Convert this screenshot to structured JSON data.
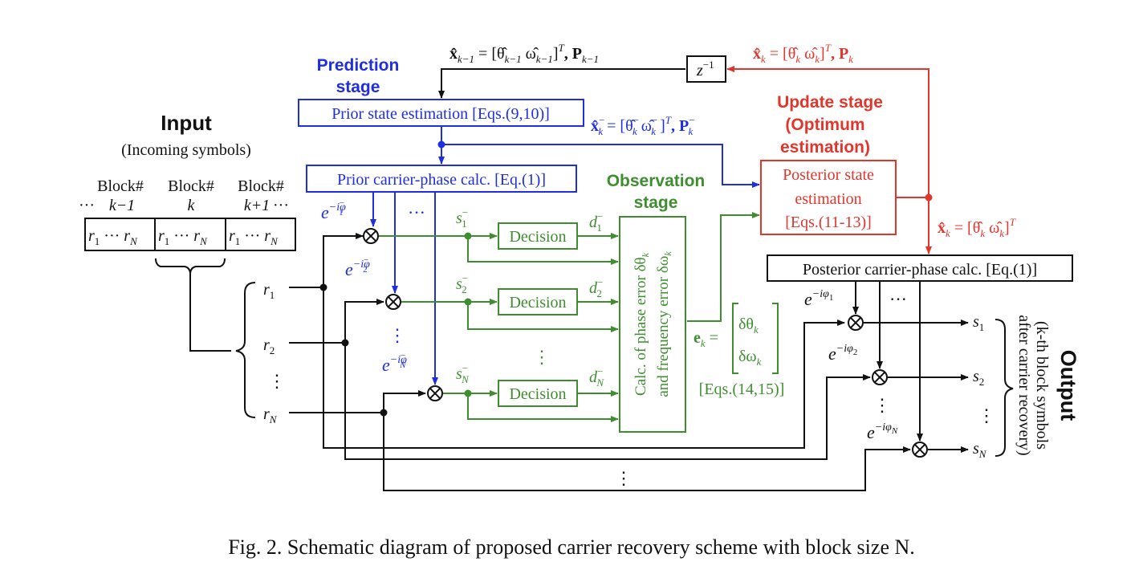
{
  "colors": {
    "black": "#111111",
    "blue": "#1f2ee0",
    "green": "#3e8e2f",
    "red": "#e2362c"
  },
  "input": {
    "title": "Input",
    "subtitle": "(Incoming symbols)",
    "block_prev": "Block#",
    "block_prev_index": "k−1",
    "block_cur": "Block#",
    "block_cur_index": "k",
    "block_next": "Block#",
    "block_next_index": "k+1",
    "ellipsis": "···",
    "symbols": [
      "r",
      "r",
      "r"
    ],
    "symbols_sub": [
      "1",
      "N",
      "1",
      "N",
      "1",
      "N"
    ],
    "r1": "r",
    "r1_sub": "1",
    "r2": "r",
    "r2_sub": "2",
    "rN": "r",
    "rN_sub": "N",
    "vdots": "⋮"
  },
  "prediction": {
    "label_line1": "Prediction",
    "label_line2": "stage",
    "prior_state_box": "Prior state estimation [Eqs.(9,10)]",
    "prior_phase_box": "Prior carrier-phase calc. [Eq.(1)]",
    "feedback_label": "x̂",
    "feedback_sub": "k−1",
    "feedback_eq": " = [θ̂",
    "feedback_theta_sub": "k−1",
    "feedback_omega": "  ω̂",
    "feedback_omega_sub": "k−1",
    "feedback_close": "]",
    "feedback_T": "T",
    "feedback_P": ",  P",
    "feedback_P_sub": "k−1",
    "prior_out": "x̂",
    "prior_out_sub": "k",
    "prior_out_sup": "−",
    "prior_eq": " = [θ̂",
    "prior_theta_sup": "−",
    "prior_theta_sub": "k",
    "prior_omega": "  ω̂",
    "prior_omega_sup": "−",
    "prior_omega_sub": "k",
    "prior_close": " ]",
    "prior_T": "T",
    "prior_P": ",  P",
    "prior_P_sup": "−",
    "prior_P_sub": "k",
    "phase1": "e",
    "phase1_sup": "−iφ",
    "phase1_sub": "1",
    "phase1_bar": "−",
    "phase2": "e",
    "phase2_sup": "−iφ",
    "phase2_sub": "2",
    "phase2_bar": "−",
    "phaseN": "e",
    "phaseN_sup": "−iφ",
    "phaseN_sub": "N",
    "phaseN_bar": "−",
    "dots": "···",
    "vdots": "⋮"
  },
  "observation": {
    "label_line1": "Observation",
    "label_line2": "stage",
    "decision": "Decision",
    "s1": "s",
    "s1_sub": "1",
    "s1_sup": "−",
    "s2": "s",
    "s2_sub": "2",
    "s2_sup": "−",
    "sN": "s",
    "sN_sub": "N",
    "sN_sup": "−",
    "d1": "d",
    "d1_sub": "1",
    "d1_sup": "−",
    "d2": "d",
    "d2_sub": "2",
    "d2_sup": "−",
    "dN": "d",
    "dN_sub": "N",
    "dN_sup": "−",
    "vdots": "⋮",
    "calc_line1": "Calc. of phase error δθ",
    "calc_line1_sub": "k",
    "calc_line2": "and frequency error δω",
    "calc_line2_sub": "k",
    "ek": "e",
    "ek_sub": "k",
    "ek_eq": " =",
    "vec_top": "δθ",
    "vec_top_sub": "k",
    "vec_bot": "δω",
    "vec_bot_sub": "k",
    "eqs": "[Eqs.(14,15)]"
  },
  "update": {
    "label_line1": "Update stage",
    "label_line2": "(Optimum",
    "label_line3": "estimation)",
    "box_line1": "Posterior state",
    "box_line2": "estimation",
    "box_line3": "[Eqs.(11-13)]",
    "delay": "z",
    "delay_sup": "−1",
    "top_label": "x̂",
    "top_sub": "k",
    "top_eq": " = [θ̂",
    "top_theta_sub": "k",
    "top_omega": "  ω̂",
    "top_omega_sub": "k",
    "top_close": "]",
    "top_T": "T",
    "top_P": ",  P",
    "top_P_sub": "k",
    "side_label": "x̂",
    "side_sub": "k",
    "side_eq": " = [θ̂",
    "side_theta_sub": "k",
    "side_omega": "  ω̂",
    "side_omega_sub": "k",
    "side_close": "]",
    "side_T": "T"
  },
  "output": {
    "posterior_box": "Posterior carrier-phase calc. [Eq.(1)]",
    "phase1": "e",
    "phase1_sup": "−iφ",
    "phase1_sub": "1",
    "phase2": "e",
    "phase2_sup": "−iφ",
    "phase2_sub": "2",
    "phaseN": "e",
    "phaseN_sup": "−iφ",
    "phaseN_sub": "N",
    "dots": "···",
    "vdots": "⋮",
    "s1": "s",
    "s1_sub": "1",
    "s2": "s",
    "s2_sub": "2",
    "sN": "s",
    "sN_sub": "N",
    "title": "Output",
    "desc_line1": "(k-th block symbols",
    "desc_line2": "after carrier recovery)",
    "bottom_vdots": "⋮"
  },
  "caption": "Fig. 2. Schematic diagram of proposed carrier recovery scheme with block size N."
}
